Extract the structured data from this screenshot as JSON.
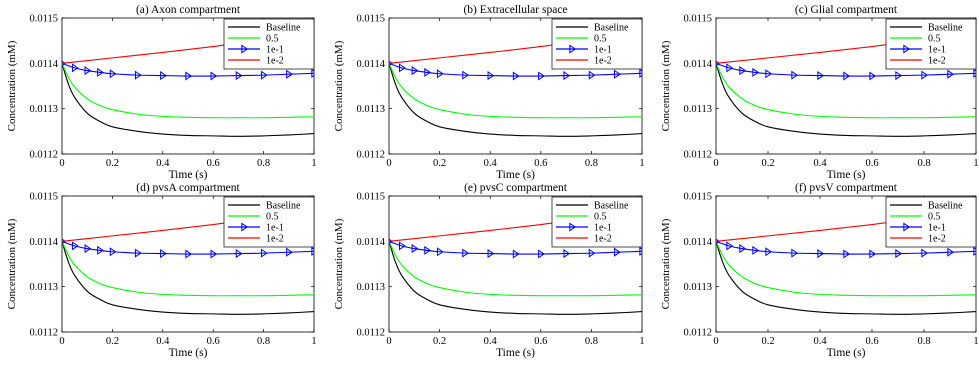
{
  "chart_data": [
    {
      "type": "line",
      "title": "(a) Axon compartment",
      "xlabel": "Time (s)",
      "ylabel": "Concentration (mM)",
      "xlim": [
        0,
        1
      ],
      "ylim": [
        0.0112,
        0.0115
      ],
      "xticks": [
        "0",
        "0.2",
        "0.4",
        "0.6",
        "0.8",
        "1"
      ],
      "yticks": [
        "0.0112",
        "0.0113",
        "0.0114",
        "0.0115"
      ],
      "legend_position": "top-right",
      "grid": false,
      "series": [
        {
          "name": "Baseline",
          "color": "#000000",
          "marker": "none",
          "x": [
            0,
            0.025,
            0.05,
            0.1,
            0.15,
            0.2,
            0.3,
            0.4,
            0.5,
            0.6,
            0.7,
            0.8,
            0.9,
            1.0
          ],
          "y": [
            0.0114,
            0.011355,
            0.011325,
            0.01129,
            0.011272,
            0.01126,
            0.01125,
            0.011244,
            0.011241,
            0.01124,
            0.011239,
            0.01124,
            0.011242,
            0.011245
          ]
        },
        {
          "name": "0.5",
          "color": "#00ff00",
          "marker": "none",
          "x": [
            0,
            0.025,
            0.05,
            0.1,
            0.15,
            0.2,
            0.3,
            0.4,
            0.5,
            0.6,
            0.7,
            0.8,
            0.9,
            1.0
          ],
          "y": [
            0.0114,
            0.01137,
            0.011348,
            0.011322,
            0.011307,
            0.011298,
            0.011288,
            0.011283,
            0.011281,
            0.01128,
            0.01128,
            0.01128,
            0.011281,
            0.011282
          ]
        },
        {
          "name": "1e-1",
          "color": "#0000ff",
          "marker": "triangle-right",
          "x": [
            0,
            0.05,
            0.1,
            0.15,
            0.2,
            0.3,
            0.4,
            0.5,
            0.6,
            0.7,
            0.8,
            0.9,
            1.0
          ],
          "y": [
            0.0114,
            0.01139,
            0.011384,
            0.01138,
            0.011377,
            0.011374,
            0.011373,
            0.011372,
            0.011372,
            0.011373,
            0.011374,
            0.011376,
            0.011378
          ]
        },
        {
          "name": "1e-2",
          "color": "#ff0000",
          "marker": "none",
          "x": [
            0,
            0.2,
            0.4,
            0.6,
            0.8,
            1.0
          ],
          "y": [
            0.0114,
            0.011412,
            0.011424,
            0.011437,
            0.011452,
            0.011468
          ]
        }
      ]
    },
    {
      "type": "line",
      "title": "(b) Extracellular space",
      "xlabel": "Time (s)",
      "ylabel": "Concentration (mM)",
      "xlim": [
        0,
        1
      ],
      "ylim": [
        0.0112,
        0.0115
      ],
      "xticks": [
        "0",
        "0.2",
        "0.4",
        "0.6",
        "0.8",
        "1"
      ],
      "yticks": [
        "0.0112",
        "0.0113",
        "0.0114",
        "0.0115"
      ],
      "legend_position": "top-right",
      "grid": false,
      "series": [
        {
          "name": "Baseline",
          "color": "#000000",
          "marker": "none",
          "x": [
            0,
            0.025,
            0.05,
            0.1,
            0.15,
            0.2,
            0.3,
            0.4,
            0.5,
            0.6,
            0.7,
            0.8,
            0.9,
            1.0
          ],
          "y": [
            0.0114,
            0.011355,
            0.011325,
            0.01129,
            0.011272,
            0.01126,
            0.01125,
            0.011244,
            0.011241,
            0.01124,
            0.011239,
            0.01124,
            0.011242,
            0.011245
          ]
        },
        {
          "name": "0.5",
          "color": "#00ff00",
          "marker": "none",
          "x": [
            0,
            0.025,
            0.05,
            0.1,
            0.15,
            0.2,
            0.3,
            0.4,
            0.5,
            0.6,
            0.7,
            0.8,
            0.9,
            1.0
          ],
          "y": [
            0.0114,
            0.01137,
            0.011348,
            0.011322,
            0.011307,
            0.011298,
            0.011288,
            0.011283,
            0.011281,
            0.01128,
            0.01128,
            0.01128,
            0.011281,
            0.011282
          ]
        },
        {
          "name": "1e-1",
          "color": "#0000ff",
          "marker": "triangle-right",
          "x": [
            0,
            0.05,
            0.1,
            0.15,
            0.2,
            0.3,
            0.4,
            0.5,
            0.6,
            0.7,
            0.8,
            0.9,
            1.0
          ],
          "y": [
            0.0114,
            0.01139,
            0.011384,
            0.01138,
            0.011377,
            0.011374,
            0.011373,
            0.011372,
            0.011372,
            0.011373,
            0.011374,
            0.011376,
            0.011378
          ]
        },
        {
          "name": "1e-2",
          "color": "#ff0000",
          "marker": "none",
          "x": [
            0,
            0.2,
            0.4,
            0.6,
            0.8,
            1.0
          ],
          "y": [
            0.0114,
            0.011412,
            0.011424,
            0.011437,
            0.011452,
            0.011468
          ]
        }
      ]
    },
    {
      "type": "line",
      "title": "(c) Glial compartment",
      "xlabel": "Time (s)",
      "ylabel": "Concentration (mM)",
      "xlim": [
        0,
        1
      ],
      "ylim": [
        0.0112,
        0.0115
      ],
      "xticks": [
        "0",
        "0.2",
        "0.4",
        "0.6",
        "0.8",
        "1"
      ],
      "yticks": [
        "0.0112",
        "0.0113",
        "0.0114",
        "0.0115"
      ],
      "legend_position": "top-right",
      "grid": false,
      "series": [
        {
          "name": "Baseline",
          "color": "#000000",
          "marker": "none",
          "x": [
            0,
            0.025,
            0.05,
            0.1,
            0.15,
            0.2,
            0.3,
            0.4,
            0.5,
            0.6,
            0.7,
            0.8,
            0.9,
            1.0
          ],
          "y": [
            0.0114,
            0.011355,
            0.011325,
            0.01129,
            0.011272,
            0.01126,
            0.01125,
            0.011244,
            0.011241,
            0.01124,
            0.011239,
            0.01124,
            0.011242,
            0.011245
          ]
        },
        {
          "name": "0.5",
          "color": "#00ff00",
          "marker": "none",
          "x": [
            0,
            0.025,
            0.05,
            0.1,
            0.15,
            0.2,
            0.3,
            0.4,
            0.5,
            0.6,
            0.7,
            0.8,
            0.9,
            1.0
          ],
          "y": [
            0.0114,
            0.01137,
            0.011348,
            0.011322,
            0.011307,
            0.011298,
            0.011288,
            0.011283,
            0.011281,
            0.01128,
            0.01128,
            0.01128,
            0.011281,
            0.011282
          ]
        },
        {
          "name": "1e-1",
          "color": "#0000ff",
          "marker": "triangle-right",
          "x": [
            0,
            0.05,
            0.1,
            0.15,
            0.2,
            0.3,
            0.4,
            0.5,
            0.6,
            0.7,
            0.8,
            0.9,
            1.0
          ],
          "y": [
            0.0114,
            0.01139,
            0.011384,
            0.01138,
            0.011377,
            0.011374,
            0.011373,
            0.011372,
            0.011372,
            0.011373,
            0.011374,
            0.011376,
            0.011378
          ]
        },
        {
          "name": "1e-2",
          "color": "#ff0000",
          "marker": "none",
          "x": [
            0,
            0.2,
            0.4,
            0.6,
            0.8,
            1.0
          ],
          "y": [
            0.0114,
            0.011412,
            0.011424,
            0.011437,
            0.011452,
            0.011468
          ]
        }
      ]
    },
    {
      "type": "line",
      "title": "(d) pvsA compartment",
      "xlabel": "Time (s)",
      "ylabel": "Concentration (mM)",
      "xlim": [
        0,
        1
      ],
      "ylim": [
        0.0112,
        0.0115
      ],
      "xticks": [
        "0",
        "0.2",
        "0.4",
        "0.6",
        "0.8",
        "1"
      ],
      "yticks": [
        "0.0112",
        "0.0113",
        "0.0114",
        "0.0115"
      ],
      "legend_position": "top-right",
      "grid": false,
      "series": [
        {
          "name": "Baseline",
          "color": "#000000",
          "marker": "none",
          "x": [
            0,
            0.025,
            0.05,
            0.1,
            0.15,
            0.2,
            0.3,
            0.4,
            0.5,
            0.6,
            0.7,
            0.8,
            0.9,
            1.0
          ],
          "y": [
            0.0114,
            0.011355,
            0.011325,
            0.01129,
            0.011272,
            0.01126,
            0.01125,
            0.011244,
            0.011241,
            0.01124,
            0.011239,
            0.01124,
            0.011242,
            0.011245
          ]
        },
        {
          "name": "0.5",
          "color": "#00ff00",
          "marker": "none",
          "x": [
            0,
            0.025,
            0.05,
            0.1,
            0.15,
            0.2,
            0.3,
            0.4,
            0.5,
            0.6,
            0.7,
            0.8,
            0.9,
            1.0
          ],
          "y": [
            0.0114,
            0.01137,
            0.011348,
            0.011322,
            0.011307,
            0.011298,
            0.011288,
            0.011283,
            0.011281,
            0.01128,
            0.01128,
            0.01128,
            0.011281,
            0.011282
          ]
        },
        {
          "name": "1e-1",
          "color": "#0000ff",
          "marker": "triangle-right",
          "x": [
            0,
            0.05,
            0.1,
            0.15,
            0.2,
            0.3,
            0.4,
            0.5,
            0.6,
            0.7,
            0.8,
            0.9,
            1.0
          ],
          "y": [
            0.0114,
            0.01139,
            0.011384,
            0.01138,
            0.011377,
            0.011374,
            0.011373,
            0.011372,
            0.011372,
            0.011373,
            0.011374,
            0.011376,
            0.011378
          ]
        },
        {
          "name": "1e-2",
          "color": "#ff0000",
          "marker": "none",
          "x": [
            0,
            0.2,
            0.4,
            0.6,
            0.8,
            1.0
          ],
          "y": [
            0.0114,
            0.011412,
            0.011424,
            0.011437,
            0.011452,
            0.011468
          ]
        }
      ]
    },
    {
      "type": "line",
      "title": "(e) pvsC compartment",
      "xlabel": "Time (s)",
      "ylabel": "Concentration (mM)",
      "xlim": [
        0,
        1
      ],
      "ylim": [
        0.0112,
        0.0115
      ],
      "xticks": [
        "0",
        "0.2",
        "0.4",
        "0.6",
        "0.8",
        "1"
      ],
      "yticks": [
        "0.0112",
        "0.0113",
        "0.0114",
        "0.0115"
      ],
      "legend_position": "top-right",
      "grid": false,
      "series": [
        {
          "name": "Baseline",
          "color": "#000000",
          "marker": "none",
          "x": [
            0,
            0.025,
            0.05,
            0.1,
            0.15,
            0.2,
            0.3,
            0.4,
            0.5,
            0.6,
            0.7,
            0.8,
            0.9,
            1.0
          ],
          "y": [
            0.0114,
            0.011355,
            0.011325,
            0.01129,
            0.011272,
            0.01126,
            0.01125,
            0.011244,
            0.011241,
            0.01124,
            0.011239,
            0.01124,
            0.011242,
            0.011245
          ]
        },
        {
          "name": "0.5",
          "color": "#00ff00",
          "marker": "none",
          "x": [
            0,
            0.025,
            0.05,
            0.1,
            0.15,
            0.2,
            0.3,
            0.4,
            0.5,
            0.6,
            0.7,
            0.8,
            0.9,
            1.0
          ],
          "y": [
            0.0114,
            0.01137,
            0.011348,
            0.011322,
            0.011307,
            0.011298,
            0.011288,
            0.011283,
            0.011281,
            0.01128,
            0.01128,
            0.01128,
            0.011281,
            0.011282
          ]
        },
        {
          "name": "1e-1",
          "color": "#0000ff",
          "marker": "triangle-right",
          "x": [
            0,
            0.05,
            0.1,
            0.15,
            0.2,
            0.3,
            0.4,
            0.5,
            0.6,
            0.7,
            0.8,
            0.9,
            1.0
          ],
          "y": [
            0.0114,
            0.01139,
            0.011384,
            0.01138,
            0.011377,
            0.011374,
            0.011373,
            0.011372,
            0.011372,
            0.011373,
            0.011374,
            0.011376,
            0.011378
          ]
        },
        {
          "name": "1e-2",
          "color": "#ff0000",
          "marker": "none",
          "x": [
            0,
            0.2,
            0.4,
            0.6,
            0.8,
            1.0
          ],
          "y": [
            0.0114,
            0.011412,
            0.011424,
            0.011437,
            0.011452,
            0.011468
          ]
        }
      ]
    },
    {
      "type": "line",
      "title": "(f) pvsV compartment",
      "xlabel": "Time (s)",
      "ylabel": "Concentration (mM)",
      "xlim": [
        0,
        1
      ],
      "ylim": [
        0.0112,
        0.0115
      ],
      "xticks": [
        "0",
        "0.2",
        "0.4",
        "0.6",
        "0.8",
        "1"
      ],
      "yticks": [
        "0.0112",
        "0.0113",
        "0.0114",
        "0.0115"
      ],
      "legend_position": "top-right",
      "grid": false,
      "series": [
        {
          "name": "Baseline",
          "color": "#000000",
          "marker": "none",
          "x": [
            0,
            0.025,
            0.05,
            0.1,
            0.15,
            0.2,
            0.3,
            0.4,
            0.5,
            0.6,
            0.7,
            0.8,
            0.9,
            1.0
          ],
          "y": [
            0.0114,
            0.011355,
            0.011325,
            0.01129,
            0.011272,
            0.01126,
            0.01125,
            0.011244,
            0.011241,
            0.01124,
            0.011239,
            0.01124,
            0.011242,
            0.011245
          ]
        },
        {
          "name": "0.5",
          "color": "#00ff00",
          "marker": "none",
          "x": [
            0,
            0.025,
            0.05,
            0.1,
            0.15,
            0.2,
            0.3,
            0.4,
            0.5,
            0.6,
            0.7,
            0.8,
            0.9,
            1.0
          ],
          "y": [
            0.0114,
            0.01137,
            0.011348,
            0.011322,
            0.011307,
            0.011298,
            0.011288,
            0.011283,
            0.011281,
            0.01128,
            0.01128,
            0.01128,
            0.011281,
            0.011282
          ]
        },
        {
          "name": "1e-1",
          "color": "#0000ff",
          "marker": "triangle-right",
          "x": [
            0,
            0.05,
            0.1,
            0.15,
            0.2,
            0.3,
            0.4,
            0.5,
            0.6,
            0.7,
            0.8,
            0.9,
            1.0
          ],
          "y": [
            0.0114,
            0.01139,
            0.011384,
            0.01138,
            0.011377,
            0.011374,
            0.011373,
            0.011372,
            0.011372,
            0.011373,
            0.011374,
            0.011376,
            0.011378
          ]
        },
        {
          "name": "1e-2",
          "color": "#ff0000",
          "marker": "none",
          "x": [
            0,
            0.2,
            0.4,
            0.6,
            0.8,
            1.0
          ],
          "y": [
            0.0114,
            0.011412,
            0.011424,
            0.011437,
            0.011452,
            0.011468
          ]
        }
      ]
    }
  ]
}
